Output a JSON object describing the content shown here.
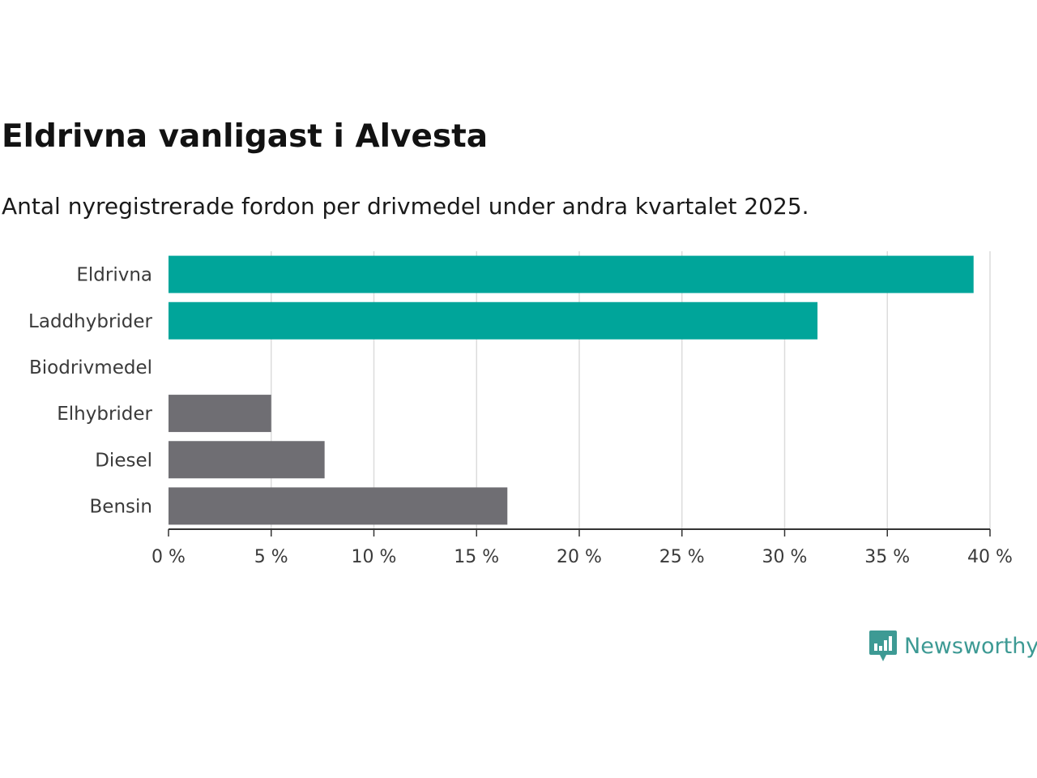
{
  "colors": {
    "highlight": "#00a59a",
    "other": "#6f6e73",
    "grid": "#dcdcdc",
    "axis": "#333333",
    "logo": "#3d9a94"
  },
  "brand": {
    "name": "Newsworthy",
    "icon": "newsworthy-logo-icon"
  },
  "chart_data": {
    "type": "bar",
    "orientation": "horizontal",
    "title": "Eldrivna vanligast i Alvesta",
    "subtitle": "Antal nyregistrerade fordon per drivmedel under andra kvartalet 2025.",
    "categories": [
      "Eldrivna",
      "Laddhybrider",
      "Biodrivmedel",
      "Elhybrider",
      "Diesel",
      "Bensin"
    ],
    "values": [
      39.2,
      31.6,
      0,
      5.0,
      7.6,
      16.5
    ],
    "highlight": [
      true,
      true,
      false,
      false,
      false,
      false
    ],
    "unit": "%",
    "xlim": [
      0,
      40
    ],
    "ticks": [
      0,
      5,
      10,
      15,
      20,
      25,
      30,
      35,
      40
    ],
    "tick_labels": [
      "0 %",
      "5 %",
      "10 %",
      "15 %",
      "20 %",
      "25 %",
      "30 %",
      "35 %",
      "40 %"
    ],
    "grid": true,
    "legend": "none"
  }
}
